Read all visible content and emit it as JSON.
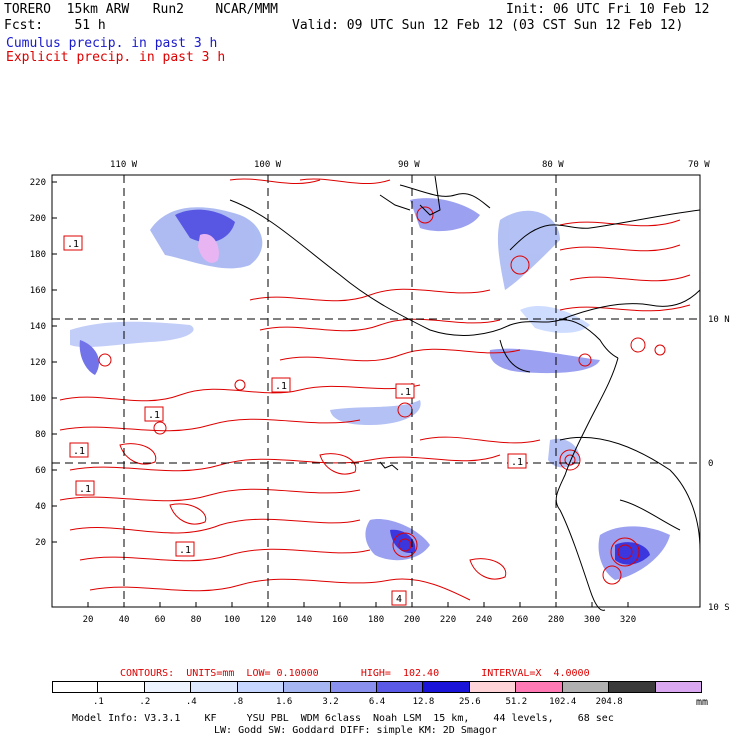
{
  "header": {
    "model": "TORERO  15km ARW   Run2    NCAR/MMM",
    "init": "Init: 06 UTC Fri 10 Feb 12",
    "fcst": "Fcst:    51 h",
    "valid": "Valid: 09 UTC Sun 12 Feb 12 (03 CST Sun 12 Feb 12)",
    "cumulus": "Cumulus precip. in past 3 h",
    "explicit": "Explicit precip. in past 3 h"
  },
  "axes": {
    "lon_labels": [
      "110 W",
      "100 W",
      "90 W",
      "80 W",
      "70 W"
    ],
    "lat_labels": [
      "10 N",
      "0",
      "10 S"
    ],
    "x_ticks": [
      "20",
      "40",
      "60",
      "80",
      "100",
      "120",
      "140",
      "160",
      "180",
      "200",
      "220",
      "240",
      "260",
      "280",
      "300",
      "320"
    ],
    "y_ticks": [
      "220",
      "200",
      "180",
      "160",
      "140",
      "120",
      "100",
      "80",
      "60",
      "40",
      "20"
    ]
  },
  "contour_labels": [
    ".1",
    ".1",
    ".1",
    ".1",
    ".1",
    ".1",
    ".1",
    ".1",
    "4"
  ],
  "footer": {
    "contours": "CONTOURS:  UNITS=mm  LOW= 0.10000       HIGH=  102.40       INTERVAL=X  4.0000",
    "unit": "mm",
    "model_info": "Model Info: V3.3.1    KF     YSU PBL  WDM 6class  Noah LSM  15 km,    44 levels,    68 sec",
    "model_info2": "LW: Godd SW: Goddard DIFF: simple KM: 2D Smagor"
  },
  "colorbar": {
    "labels": [
      ".1",
      ".2",
      ".4",
      ".8",
      "1.6",
      "3.2",
      "6.4",
      "12.8",
      "25.6",
      "51.2",
      "102.4",
      "204.8"
    ],
    "colors": [
      "#ffffff",
      "#ffffff",
      "#eef4ff",
      "#dde8ff",
      "#c6d6ff",
      "#a6b6f2",
      "#8a90ee",
      "#5a5ae6",
      "#1a14d8",
      "#ffd4d8",
      "#ff7ab4",
      "#b0b0b0",
      "#3a3a3a",
      "#d9a8f0"
    ]
  }
}
